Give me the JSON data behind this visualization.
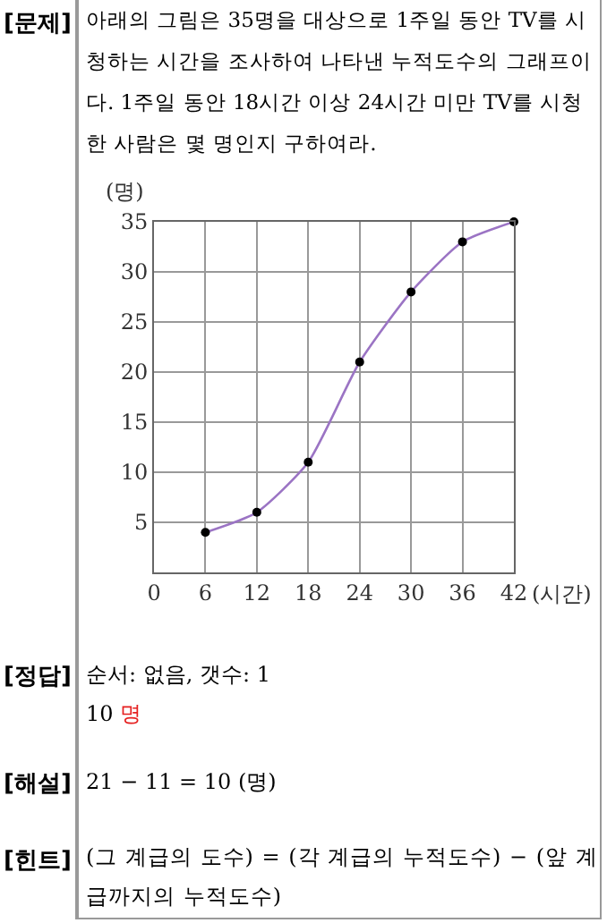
{
  "chart_data": {
    "type": "line",
    "title": "아래의 그림은 35명을 대상으로 1주일 동안 TV를 시청하는 시간을 조사하여 나타낸 누적도수의 그래프이다. 1주일 동안 18시간 이상 24시간 미만 TV를 시청한 사람은 몇 명인지 구하여라.",
    "xlabel": "(시간)",
    "ylabel": "(명)",
    "x": [
      6,
      12,
      18,
      24,
      30,
      36,
      42
    ],
    "series": [
      {
        "color": "#9b74c4",
        "values": [
          4,
          6,
          11,
          21,
          28,
          33,
          35
        ]
      }
    ],
    "marker": "circle",
    "line_style": "solid",
    "grid": true,
    "xlim": [
      0,
      42
    ],
    "xticks": [
      0,
      6,
      12,
      18,
      24,
      30,
      36,
      42
    ],
    "ylim": [
      0,
      35
    ],
    "yticks": [
      5,
      10,
      15,
      20,
      25,
      30,
      35
    ],
    "annotations": [
      "[문제]",
      "[정답]",
      "순서: 없음,   갯수: 1",
      "10",
      "명",
      "[해설]",
      "21 − 11 = 10 (명)",
      "[힌트]",
      "(그 계급의 도수) = (각 계급의 누적도수) − (앞 계급까지의 누적도수)"
    ]
  }
}
